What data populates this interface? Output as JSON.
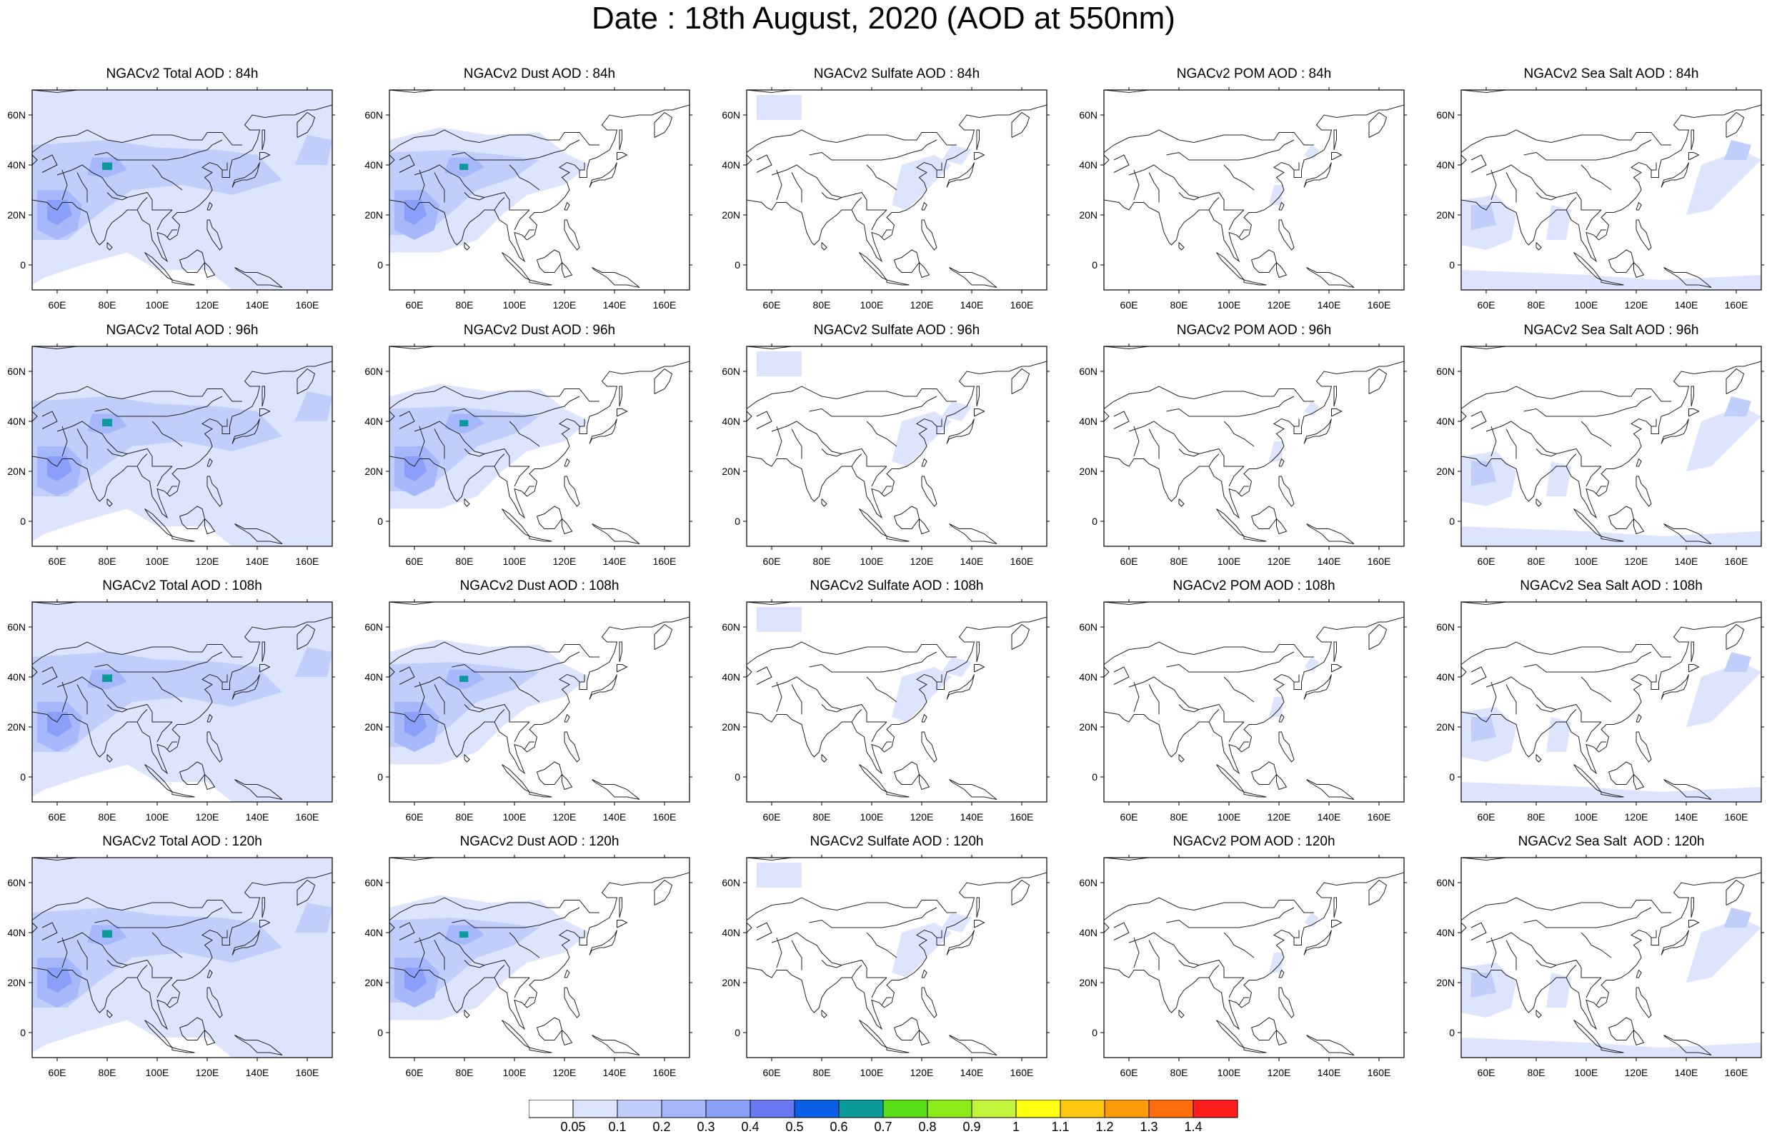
{
  "title": "Date : 18th August, 2020 (AOD at 550nm)",
  "x_ticks": [
    "60E",
    "80E",
    "100E",
    "120E",
    "140E",
    "160E"
  ],
  "x_tick_values": [
    60,
    80,
    100,
    120,
    140,
    160
  ],
  "y_ticks": [
    "60N",
    "40N",
    "20N",
    "0"
  ],
  "y_tick_values": [
    60,
    40,
    20,
    0
  ],
  "lon_range": [
    50,
    170
  ],
  "lat_range": [
    -10,
    70
  ],
  "colorbar": {
    "labels": [
      "0.05",
      "0.1",
      "0.2",
      "0.3",
      "0.4",
      "0.5",
      "0.6",
      "0.7",
      "0.8",
      "0.9",
      "1",
      "1.1",
      "1.2",
      "1.3",
      "1.4"
    ],
    "colors": [
      "#ffffff",
      "#dde4fd",
      "#c1cefc",
      "#a6b8fb",
      "#8a9ff9",
      "#6a78f1",
      "#0a5fe6",
      "#0a9a9a",
      "#58dd18",
      "#8bea18",
      "#c3f43c",
      "#ffff10",
      "#ffc810",
      "#ff9a0a",
      "#ff6e0a",
      "#ff1e1e"
    ]
  },
  "rows": [
    {
      "panels": [
        {
          "title": "NGACv2 Total AOD : 84h",
          "species": "total"
        },
        {
          "title": "NGACv2 Dust AOD : 84h",
          "species": "dust"
        },
        {
          "title": "NGACv2 Sulfate AOD : 84h",
          "species": "sulfate"
        },
        {
          "title": "NGACv2 POM AOD : 84h",
          "species": "pom"
        },
        {
          "title": "NGACv2 Sea Salt AOD : 84h",
          "species": "seasalt"
        }
      ]
    },
    {
      "panels": [
        {
          "title": "NGACv2 Total AOD : 96h",
          "species": "total"
        },
        {
          "title": "NGACv2 Dust AOD : 96h",
          "species": "dust"
        },
        {
          "title": "NGACv2 Sulfate AOD : 96h",
          "species": "sulfate"
        },
        {
          "title": "NGACv2 POM AOD : 96h",
          "species": "pom"
        },
        {
          "title": "NGACv2 Sea Salt AOD : 96h",
          "species": "seasalt"
        }
      ]
    },
    {
      "panels": [
        {
          "title": "NGACv2 Total AOD : 108h",
          "species": "total"
        },
        {
          "title": "NGACv2 Dust AOD : 108h",
          "species": "dust"
        },
        {
          "title": "NGACv2 Sulfate AOD : 108h",
          "species": "sulfate"
        },
        {
          "title": "NGACv2 POM AOD : 108h",
          "species": "pom"
        },
        {
          "title": "NGACv2 Sea Salt AOD : 108h",
          "species": "seasalt"
        }
      ]
    },
    {
      "panels": [
        {
          "title": "NGACv2 Total AOD : 120h",
          "species": "total"
        },
        {
          "title": "NGACv2 Dust AOD : 120h",
          "species": "dust"
        },
        {
          "title": "NGACv2 Sulfate AOD : 120h",
          "species": "sulfate"
        },
        {
          "title": "NGACv2 POM AOD : 120h",
          "species": "pom"
        },
        {
          "title": "NGACv2 Sea Salt  AOD : 120h",
          "species": "seasalt"
        }
      ]
    }
  ]
}
